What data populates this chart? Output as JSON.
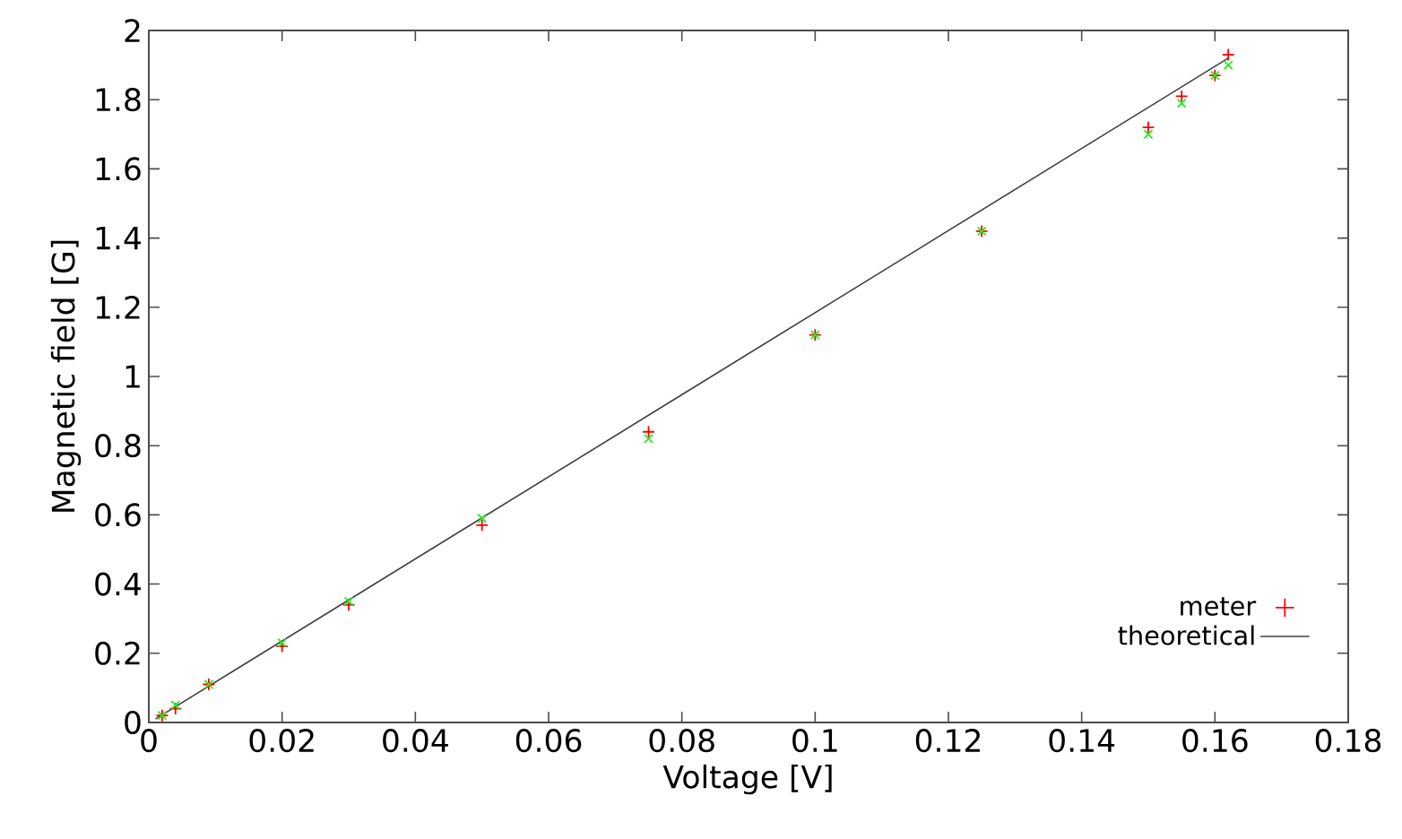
{
  "chart_data": {
    "type": "scatter",
    "xlabel": "Voltage [V]",
    "ylabel": "Magnetic field [G]",
    "xlim": [
      0,
      0.18
    ],
    "xticks": [
      0,
      0.02,
      0.04,
      0.06,
      0.08,
      0.1,
      0.12,
      0.14,
      0.16,
      0.18
    ],
    "ylim": [
      0,
      2
    ],
    "yticks": [
      0,
      0.2,
      0.4,
      0.6,
      0.8,
      1,
      1.2,
      1.4,
      1.6,
      1.8,
      2
    ],
    "x": [
      0.002,
      0.004,
      0.009,
      0.02,
      0.03,
      0.05,
      0.075,
      0.1,
      0.125,
      0.15,
      0.155,
      0.16,
      0.162
    ],
    "legend": "bottom right",
    "series": [
      {
        "name": "meter",
        "color": "#ff0000",
        "values": [
          0.02,
          0.04,
          0.11,
          0.22,
          0.34,
          0.57,
          0.84,
          1.12,
          1.42,
          1.72,
          1.81,
          1.87,
          1.93
        ]
      },
      {
        "color": "#22ee22",
        "marker": "cross",
        "values": [
          0.02,
          0.05,
          0.11,
          0.23,
          0.35,
          0.59,
          0.82,
          1.12,
          1.42,
          1.7,
          1.79,
          1.87,
          1.9
        ]
      },
      {
        "name": "theoretical",
        "type": "line",
        "color": "#404040",
        "line_style": "solid",
        "marker": "none",
        "x": [
          0.001,
          0.162
        ],
        "values": [
          0.01,
          1.92
        ]
      }
    ]
  }
}
